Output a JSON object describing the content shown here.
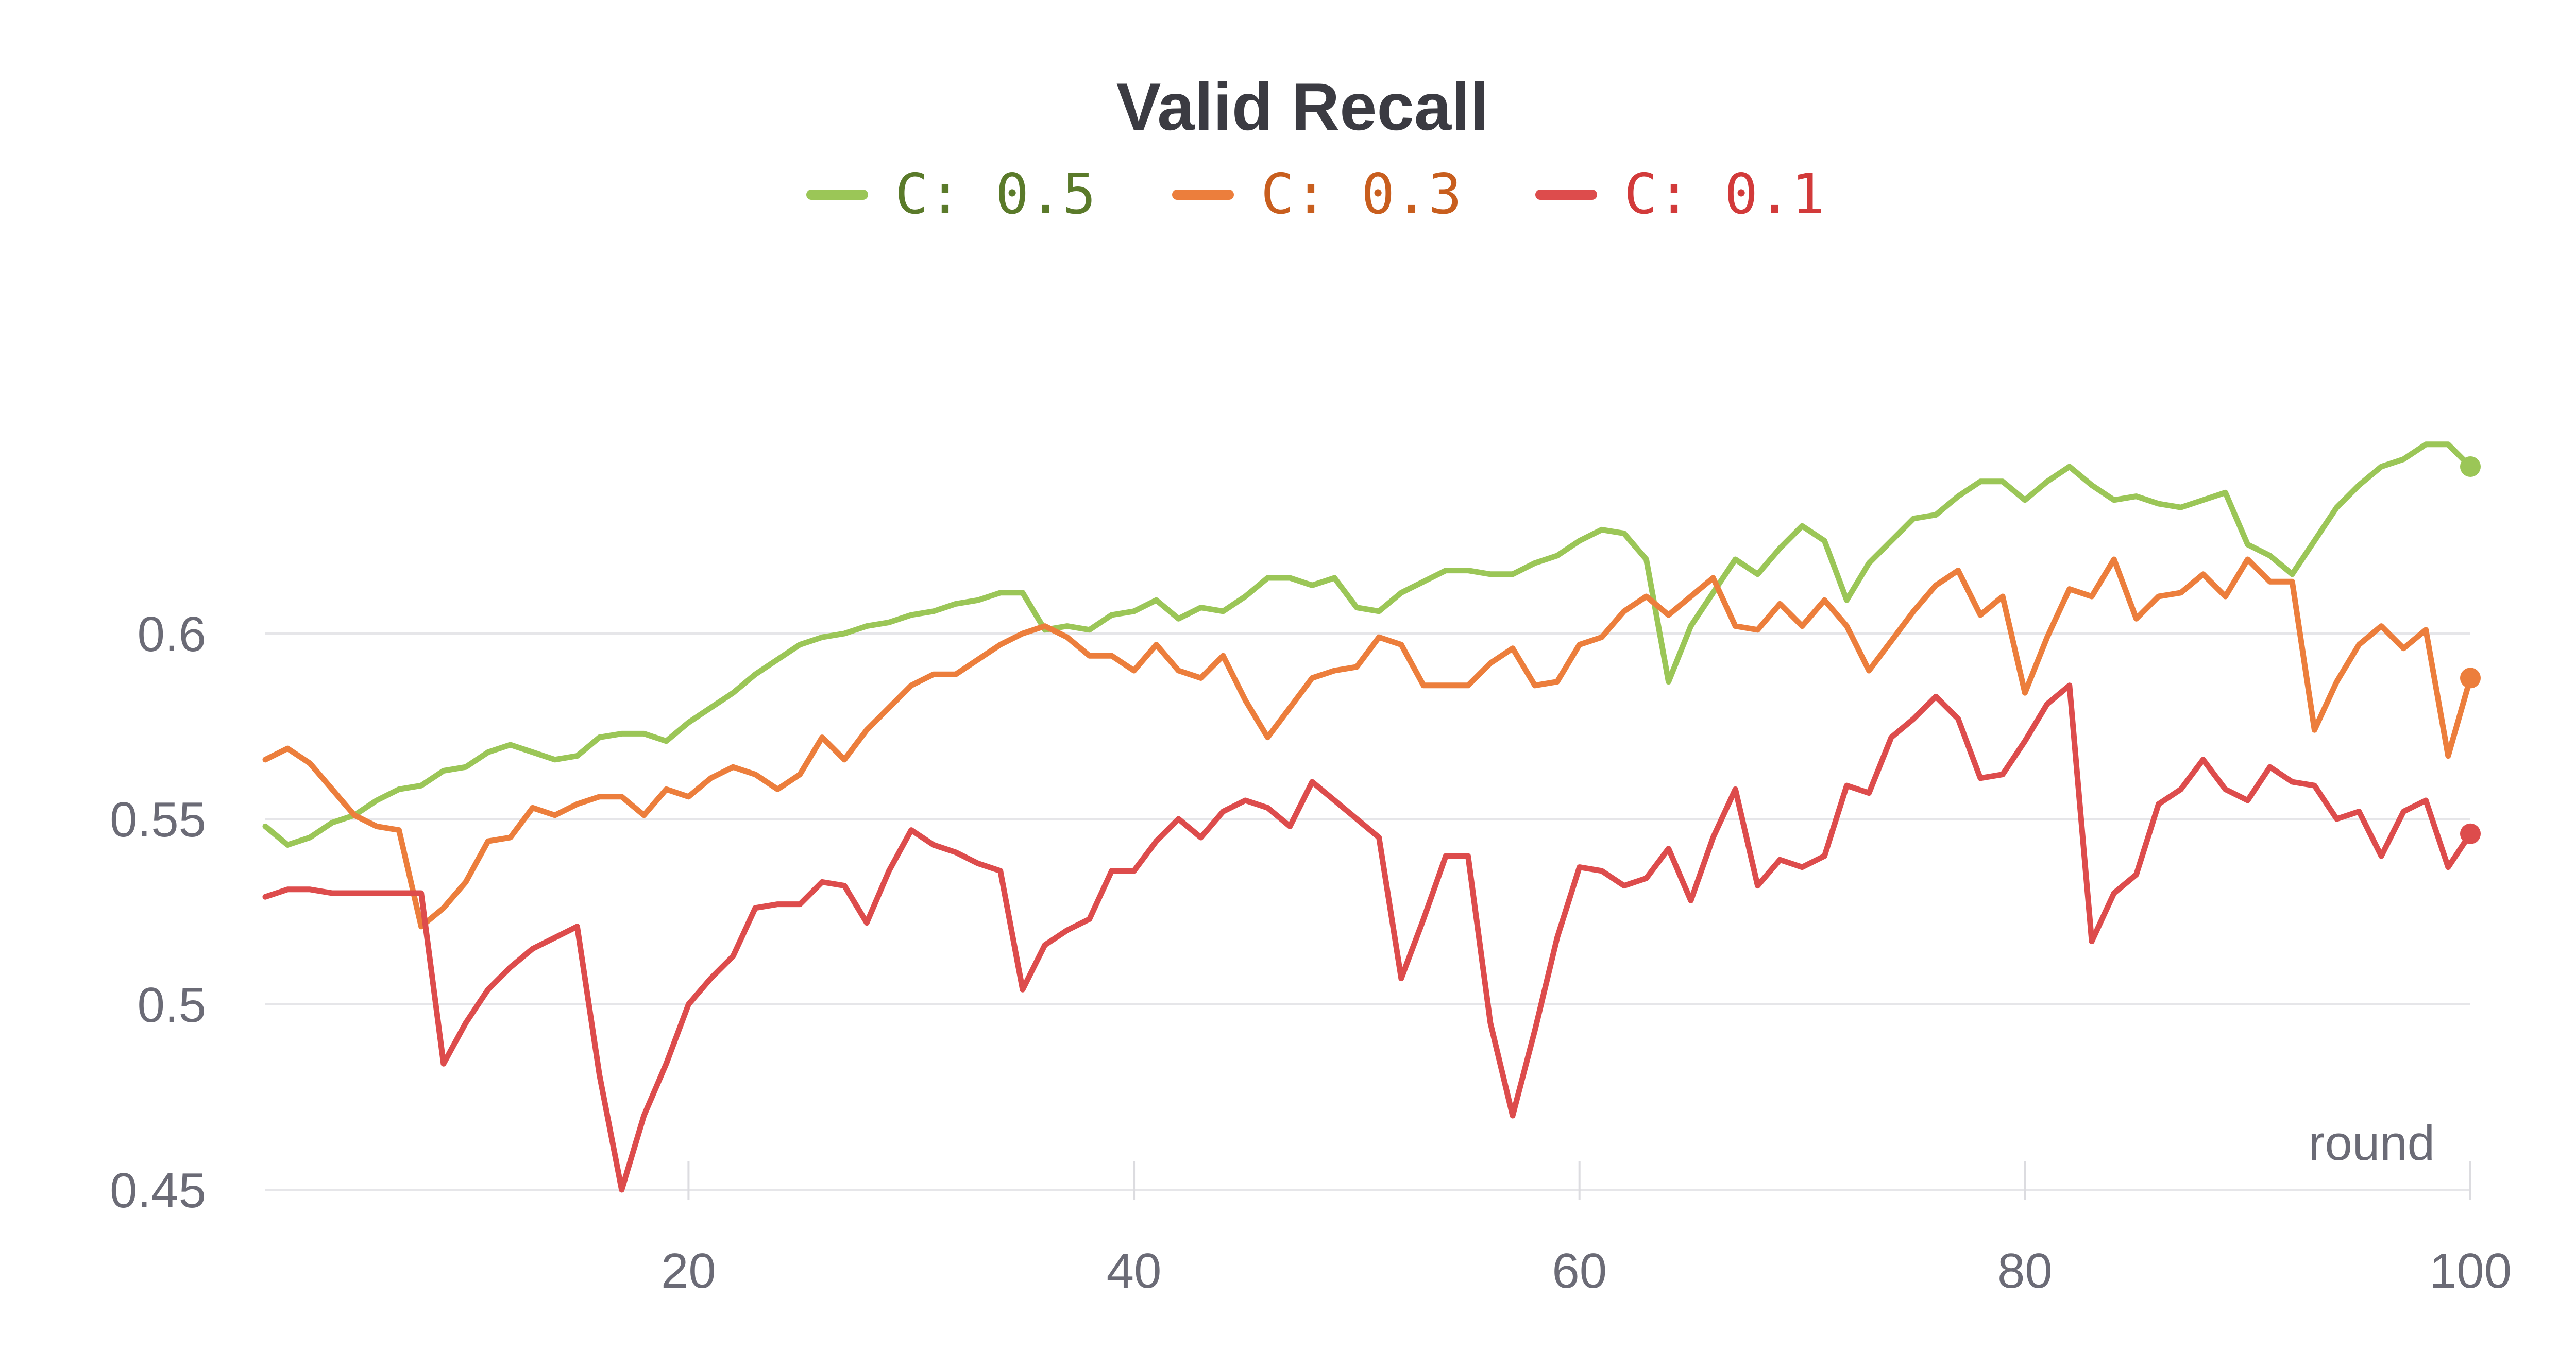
{
  "chart_data": {
    "type": "line",
    "title": "Valid Recall",
    "xlabel": "round",
    "ylabel": "",
    "xlim": [
      1,
      100
    ],
    "ylim": [
      0.45,
      0.65
    ],
    "x_ticks": [
      20,
      40,
      60,
      80,
      100
    ],
    "y_ticks": [
      0.45,
      0.5,
      0.55,
      0.6
    ],
    "x_tick_labels": [
      "20",
      "40",
      "60",
      "80",
      "100"
    ],
    "y_tick_labels": [
      "0.45",
      "0.5",
      "0.55",
      "0.6"
    ],
    "grid": "horizontal",
    "legend_position": "top-center",
    "series": [
      {
        "name": "C: 0.5",
        "color": "#9bc657",
        "text_color": "#5a7a2a",
        "values": [
          0.548,
          0.543,
          0.545,
          0.549,
          0.551,
          0.555,
          0.558,
          0.559,
          0.563,
          0.564,
          0.568,
          0.57,
          0.568,
          0.566,
          0.567,
          0.572,
          0.573,
          0.573,
          0.571,
          0.576,
          0.58,
          0.584,
          0.589,
          0.593,
          0.597,
          0.599,
          0.6,
          0.602,
          0.603,
          0.605,
          0.606,
          0.608,
          0.609,
          0.611,
          0.611,
          0.601,
          0.602,
          0.601,
          0.605,
          0.606,
          0.609,
          0.604,
          0.607,
          0.606,
          0.61,
          0.615,
          0.615,
          0.613,
          0.615,
          0.607,
          0.606,
          0.611,
          0.614,
          0.617,
          0.617,
          0.616,
          0.616,
          0.619,
          0.621,
          0.625,
          0.628,
          0.627,
          0.62,
          0.587,
          0.602,
          0.611,
          0.62,
          0.616,
          0.623,
          0.629,
          0.625,
          0.609,
          0.619,
          0.625,
          0.631,
          0.632,
          0.637,
          0.641,
          0.641,
          0.636,
          0.641,
          0.645,
          0.64,
          0.636,
          0.637,
          0.635,
          0.634,
          0.636,
          0.638,
          0.624,
          0.621,
          0.616,
          0.625,
          0.634,
          0.64,
          0.645,
          0.647,
          0.651,
          0.651,
          0.645
        ]
      },
      {
        "name": "C: 0.3",
        "color": "#ec7e3c",
        "text_color": "#c85e1e",
        "values": [
          0.566,
          0.569,
          0.565,
          0.558,
          0.551,
          0.548,
          0.547,
          0.521,
          0.526,
          0.533,
          0.544,
          0.545,
          0.553,
          0.551,
          0.554,
          0.556,
          0.556,
          0.551,
          0.558,
          0.556,
          0.561,
          0.564,
          0.562,
          0.558,
          0.562,
          0.572,
          0.566,
          0.574,
          0.58,
          0.586,
          0.589,
          0.589,
          0.593,
          0.597,
          0.6,
          0.602,
          0.599,
          0.594,
          0.594,
          0.59,
          0.597,
          0.59,
          0.588,
          0.594,
          0.582,
          0.572,
          0.58,
          0.588,
          0.59,
          0.591,
          0.599,
          0.597,
          0.586,
          0.586,
          0.586,
          0.592,
          0.596,
          0.586,
          0.587,
          0.597,
          0.599,
          0.606,
          0.61,
          0.605,
          0.61,
          0.615,
          0.602,
          0.601,
          0.608,
          0.602,
          0.609,
          0.602,
          0.59,
          0.598,
          0.606,
          0.613,
          0.617,
          0.605,
          0.61,
          0.584,
          0.599,
          0.612,
          0.61,
          0.62,
          0.604,
          0.61,
          0.611,
          0.616,
          0.61,
          0.62,
          0.614,
          0.614,
          0.574,
          0.587,
          0.597,
          0.602,
          0.596,
          0.601,
          0.567,
          0.588
        ]
      },
      {
        "name": "C: 0.1",
        "color": "#dd4c4c",
        "text_color": "#d23a3a",
        "values": [
          0.529,
          0.531,
          0.531,
          0.53,
          0.53,
          0.53,
          0.53,
          0.53,
          0.484,
          0.495,
          0.504,
          0.51,
          0.515,
          0.518,
          0.521,
          0.481,
          0.45,
          0.47,
          0.484,
          0.5,
          0.507,
          0.513,
          0.526,
          0.527,
          0.527,
          0.533,
          0.532,
          0.522,
          0.536,
          0.547,
          0.543,
          0.541,
          0.538,
          0.536,
          0.504,
          0.516,
          0.52,
          0.523,
          0.536,
          0.536,
          0.544,
          0.55,
          0.545,
          0.552,
          0.555,
          0.553,
          0.548,
          0.56,
          0.555,
          0.55,
          0.545,
          0.507,
          0.523,
          0.54,
          0.54,
          0.495,
          0.47,
          0.493,
          0.518,
          0.537,
          0.536,
          0.532,
          0.534,
          0.542,
          0.528,
          0.545,
          0.558,
          0.532,
          0.539,
          0.537,
          0.54,
          0.559,
          0.557,
          0.572,
          0.577,
          0.583,
          0.577,
          0.561,
          0.562,
          0.571,
          0.581,
          0.586,
          0.517,
          0.53,
          0.535,
          0.554,
          0.558,
          0.566,
          0.558,
          0.555,
          0.564,
          0.56,
          0.559,
          0.55,
          0.552,
          0.54,
          0.552,
          0.555,
          0.537,
          0.546
        ]
      }
    ]
  }
}
